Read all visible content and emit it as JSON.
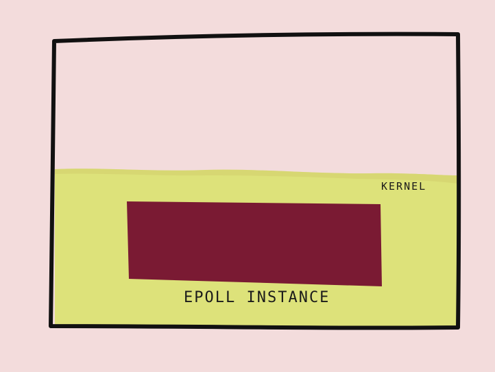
{
  "colors": {
    "background": "#f3dcdc",
    "kernel_region": "#dde27a",
    "epoll_instance": "#7a1a33",
    "outline": "#111111"
  },
  "labels": {
    "kernel": "KERNEL",
    "epoll_instance": "EPOLL INSTANCE"
  }
}
